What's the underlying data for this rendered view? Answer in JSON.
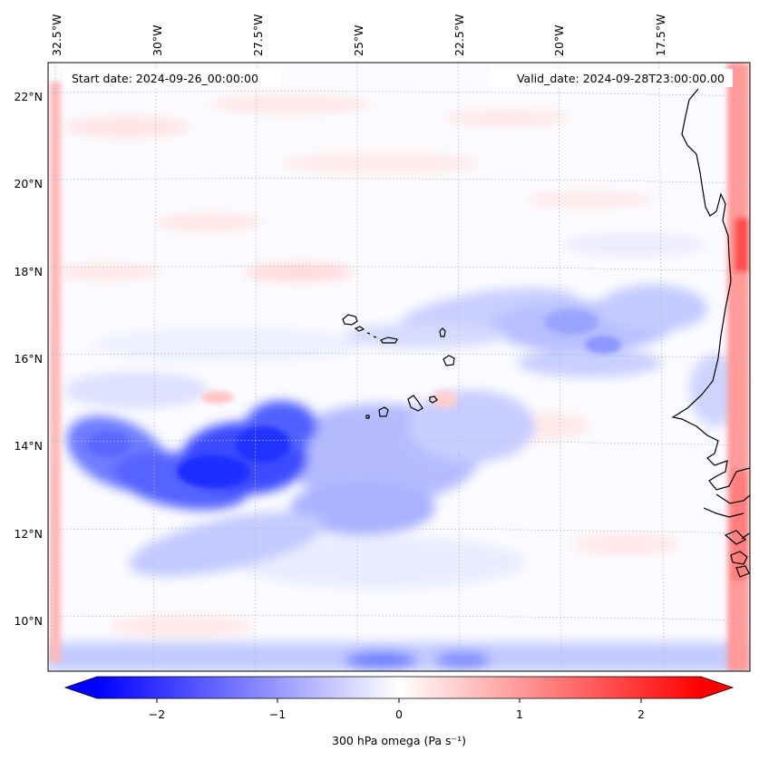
{
  "map": {
    "start_label": "Start date: 2024-09-26_00:00:00",
    "valid_label": "Valid_date: 2024-09-28T23:00:00.00",
    "lon_labels": [
      "32.5°W",
      "30°W",
      "27.5°W",
      "25°W",
      "22.5°W",
      "20°W",
      "17.5°W"
    ],
    "lat_labels": [
      "22°N",
      "20°N",
      "18°N",
      "16°N",
      "14°N",
      "12°N",
      "10°N"
    ],
    "extent": {
      "lon": [
        -32.8,
        -15.8
      ],
      "lat": [
        8.9,
        22.8
      ]
    },
    "features": [
      "coastline",
      "cape-verde-islands",
      "gridlines-dashed",
      "filled-contour-field"
    ]
  },
  "colorbar": {
    "label": "300 hPa omega (Pa s⁻¹)",
    "tick_labels": [
      "−2",
      "−1",
      "0",
      "1",
      "2"
    ],
    "tick_values": [
      -2,
      -1,
      0,
      1,
      2
    ],
    "range": [
      -2.5,
      2.5
    ],
    "colormap": "bwr",
    "extend": "both"
  },
  "colors": {
    "negative": "#0000ff",
    "zero": "#ffffff",
    "positive": "#ff0000",
    "coast": "#000000"
  }
}
